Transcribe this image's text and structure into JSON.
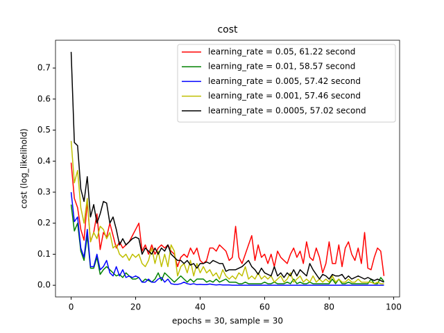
{
  "chart_data": {
    "type": "line",
    "title": "cost",
    "xlabel": "epochs = 30, sample = 30",
    "ylabel": "cost (log_likelihold)",
    "x": [
      0,
      1,
      2,
      3,
      4,
      5,
      6,
      7,
      8,
      9,
      10,
      11,
      12,
      13,
      14,
      15,
      16,
      17,
      18,
      19,
      20,
      21,
      22,
      23,
      24,
      25,
      26,
      27,
      28,
      29,
      30,
      31,
      32,
      33,
      34,
      35,
      36,
      37,
      38,
      39,
      40,
      41,
      42,
      43,
      44,
      45,
      46,
      47,
      48,
      49,
      50,
      51,
      52,
      53,
      54,
      55,
      56,
      57,
      58,
      59,
      60,
      61,
      62,
      63,
      64,
      65,
      66,
      67,
      68,
      69,
      70,
      71,
      72,
      73,
      74,
      75,
      76,
      77,
      78,
      79,
      80,
      81,
      82,
      83,
      84,
      85,
      86,
      87,
      88,
      89,
      90,
      91,
      92,
      93,
      94,
      95,
      96,
      97
    ],
    "xlim": [
      -4.85,
      101.85
    ],
    "xticks": [
      0,
      20,
      40,
      60,
      80,
      100
    ],
    "ylim": [
      -0.0376,
      0.7896
    ],
    "yticks": [
      {
        "value": 0,
        "label": "0.0"
      },
      0.1,
      0.2,
      0.3,
      0.4,
      0.5,
      0.6,
      0.7
    ],
    "legend": "upper right",
    "series": [
      {
        "name": "learning_rate = 0.05, 61.22 second",
        "color": "#ff0000",
        "values": [
          0.395,
          0.28,
          0.25,
          0.18,
          0.145,
          0.27,
          0.14,
          0.17,
          0.23,
          0.115,
          0.17,
          0.155,
          0.2,
          0.16,
          0.12,
          0.14,
          0.12,
          0.13,
          0.14,
          0.16,
          0.18,
          0.2,
          0.11,
          0.13,
          0.1,
          0.13,
          0.1,
          0.12,
          0.13,
          0.12,
          0.13,
          0.11,
          0.1,
          0.06,
          0.09,
          0.1,
          0.09,
          0.12,
          0.1,
          0.12,
          0.08,
          0.07,
          0.08,
          0.12,
          0.12,
          0.11,
          0.13,
          0.12,
          0.11,
          0.08,
          0.09,
          0.19,
          0.09,
          0.07,
          0.1,
          0.13,
          0.16,
          0.08,
          0.13,
          0.09,
          0.1,
          0.07,
          0.1,
          0.06,
          0.11,
          0.09,
          0.08,
          0.07,
          0.1,
          0.12,
          0.09,
          0.11,
          0.07,
          0.14,
          0.09,
          0.08,
          0.12,
          0.09,
          0.04,
          0.07,
          0.14,
          0.07,
          0.07,
          0.13,
          0.06,
          0.12,
          0.14,
          0.1,
          0.08,
          0.12,
          0.07,
          0.17,
          0.055,
          0.05,
          0.09,
          0.12,
          0.11,
          0.03
        ]
      },
      {
        "name": "learning_rate = 0.01, 58.57 second",
        "color": "#008000",
        "values": [
          0.26,
          0.175,
          0.2,
          0.11,
          0.08,
          0.16,
          0.055,
          0.055,
          0.09,
          0.035,
          0.05,
          0.06,
          0.05,
          0.04,
          0.03,
          0.035,
          0.025,
          0.04,
          0.03,
          0.02,
          0.02,
          0.025,
          0.01,
          0.02,
          0.015,
          0.01,
          0.02,
          0.04,
          0.015,
          0.04,
          0.03,
          0.02,
          0.01,
          0.02,
          0.03,
          0.02,
          0.01,
          0.02,
          0.01,
          0.02,
          0.02,
          0.02,
          0.01,
          0.015,
          0.01,
          0.02,
          0.01,
          0.015,
          0.02,
          0.01,
          0.01,
          0.01,
          0.005,
          0.005,
          0.01,
          0.005,
          0.005,
          0.005,
          0.005,
          0.005,
          0.01,
          0.005,
          0.005,
          0.01,
          0.005,
          0.005,
          0.005,
          0.01,
          0.005,
          0.02,
          0.005,
          0.01,
          0.005,
          0.005,
          0.01,
          0.005,
          0.005,
          0.005,
          0.005,
          0.005,
          0.005,
          0.02,
          0.005,
          0.02,
          0.005,
          0.005,
          0.01,
          0.005,
          0.005,
          0.005,
          0.005,
          0.005,
          0.005,
          0.02,
          0.005,
          0.005,
          0.025,
          0.012
        ]
      },
      {
        "name": "learning_rate = 0.005, 57.42 second",
        "color": "#0000ff",
        "values": [
          0.3,
          0.205,
          0.22,
          0.12,
          0.09,
          0.18,
          0.06,
          0.06,
          0.1,
          0.05,
          0.06,
          0.08,
          0.04,
          0.03,
          0.06,
          0.03,
          0.05,
          0.025,
          0.03,
          0.025,
          0.03,
          0.025,
          0.01,
          0.01,
          0.02,
          0.01,
          0.01,
          0.02,
          0.025,
          0.01,
          0.02,
          0.005,
          0.003,
          0.003,
          0.005,
          0.01,
          0.005,
          0.003,
          0.005,
          0.002,
          0.003,
          0.002,
          0.002,
          0.004,
          0.002,
          0.001,
          0.002,
          0.001,
          0.001,
          0.001,
          0,
          0,
          0,
          0,
          0,
          0,
          0,
          0,
          0,
          0,
          0,
          0,
          0,
          0,
          0,
          0,
          0,
          0,
          0,
          0,
          0,
          0,
          0,
          0,
          0,
          0,
          0,
          0,
          0,
          0,
          0,
          0,
          0,
          0,
          0,
          0,
          0,
          0,
          0,
          0,
          0,
          0,
          0,
          0,
          0,
          0,
          0,
          0
        ]
      },
      {
        "name": "learning_rate = 0.001, 57.46 second",
        "color": "#bfbf00",
        "values": [
          0.465,
          0.33,
          0.37,
          0.25,
          0.2,
          0.28,
          0.14,
          0.17,
          0.15,
          0.19,
          0.18,
          0.15,
          0.17,
          0.12,
          0.13,
          0.1,
          0.09,
          0.1,
          0.08,
          0.1,
          0.09,
          0.1,
          0.07,
          0.06,
          0.08,
          0.12,
          0.07,
          0.11,
          0.06,
          0.1,
          0.06,
          0.13,
          0.11,
          0.03,
          0.06,
          0.07,
          0.04,
          0.08,
          0.03,
          0.07,
          0.04,
          0.06,
          0.04,
          0.05,
          0.03,
          0.04,
          0.02,
          0.05,
          0.03,
          0.02,
          0.03,
          0.02,
          0.04,
          0.03,
          0.06,
          0.02,
          0.03,
          0.02,
          0.04,
          0.02,
          0.03,
          0.02,
          0.03,
          0.01,
          0.02,
          0.03,
          0.01,
          0.02,
          0.04,
          0.01,
          0.02,
          0.03,
          0.01,
          0.02,
          0.01,
          0.03,
          0.01,
          0.02,
          0.01,
          0.02,
          0.01,
          0.03,
          0.01,
          0.02,
          0.01,
          0.01,
          0.02,
          0.01,
          0.01,
          0.02,
          0.01,
          0.01,
          0.01,
          0.01,
          0.005,
          0.01,
          0.005,
          0.005
        ]
      },
      {
        "name": "learning_rate = 0.0005, 57.02 second",
        "color": "#000000",
        "values": [
          0.752,
          0.46,
          0.45,
          0.31,
          0.27,
          0.35,
          0.22,
          0.26,
          0.2,
          0.23,
          0.27,
          0.265,
          0.2,
          0.22,
          0.18,
          0.13,
          0.15,
          0.13,
          0.14,
          0.15,
          0.155,
          0.15,
          0.1,
          0.12,
          0.11,
          0.1,
          0.12,
          0.1,
          0.12,
          0.11,
          0.13,
          0.1,
          0.09,
          0.08,
          0.08,
          0.07,
          0.08,
          0.065,
          0.07,
          0.055,
          0.07,
          0.07,
          0.075,
          0.07,
          0.08,
          0.075,
          0.07,
          0.07,
          0.045,
          0.05,
          0.05,
          0.05,
          0.055,
          0.06,
          0.07,
          0.08,
          0.06,
          0.05,
          0.035,
          0.055,
          0.04,
          0.035,
          0.03,
          0.06,
          0.03,
          0.04,
          0.025,
          0.04,
          0.03,
          0.05,
          0.03,
          0.05,
          0.04,
          0.03,
          0.07,
          0.05,
          0.035,
          0.02,
          0.035,
          0.03,
          0.02,
          0.035,
          0.03,
          0.03,
          0.035,
          0.02,
          0.03,
          0.02,
          0.025,
          0.03,
          0.025,
          0.02,
          0.025,
          0.02,
          0.015,
          0.02,
          0.015,
          0.01
        ]
      }
    ]
  }
}
